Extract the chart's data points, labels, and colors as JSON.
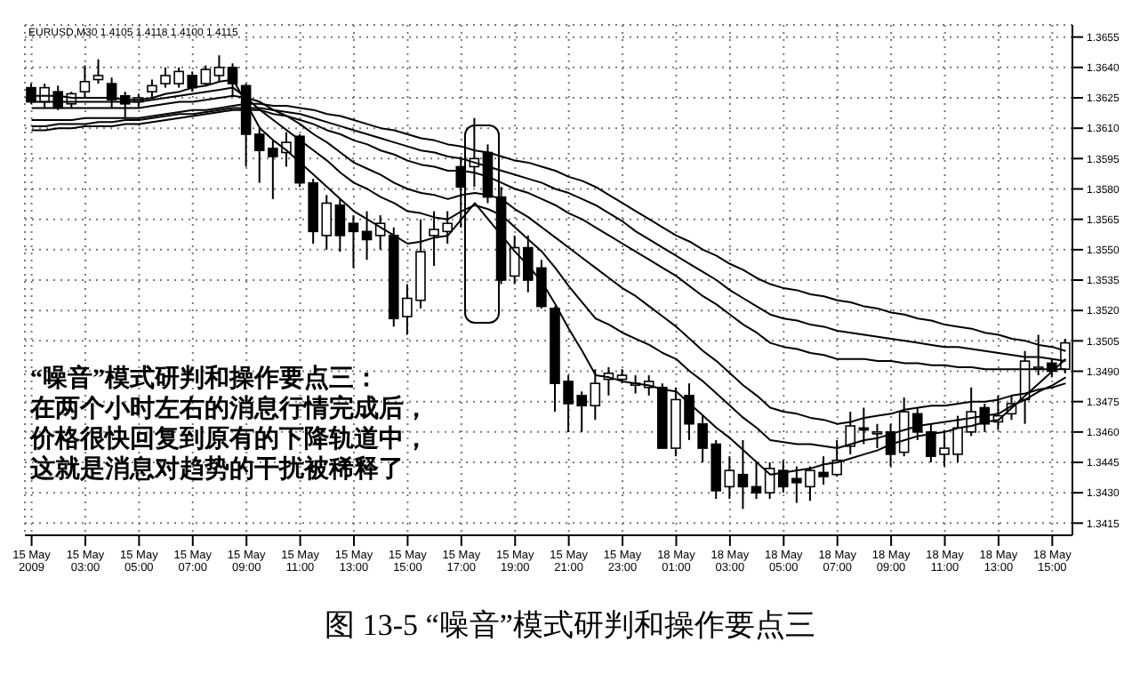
{
  "chart_data": {
    "type": "candlestick",
    "title": "图 13-5 “噪音”模式研判和操作要点三",
    "annotations": [
      "EURUSD,M30 1.4105 1.4118 1.4100 1.4115",
      "“噪音”模式研判和操作要点三：",
      "在两个小时左右的消息行情完成后，",
      "价格很快回复到原有的下降轨道中，",
      "这就是消息对趋势的干扰被稀释了"
    ],
    "color": "#000000",
    "grid": true,
    "categories": [
      "15 May 2009",
      null,
      null,
      null,
      "15 May 03:00",
      null,
      null,
      null,
      "15 May 05:00",
      null,
      null,
      null,
      "15 May 07:00",
      null,
      null,
      null,
      "15 May 09:00",
      null,
      null,
      null,
      "15 May 11:00",
      null,
      null,
      null,
      "15 May 13:00",
      null,
      null,
      null,
      "15 May 15:00",
      null,
      null,
      null,
      "15 May 17:00",
      null,
      null,
      null,
      "15 May 19:00",
      null,
      null,
      null,
      "15 May 21:00",
      null,
      null,
      null,
      "15 May 23:00",
      null,
      null,
      null,
      "18 May 01:00",
      null,
      null,
      null,
      "18 May 03:00",
      null,
      null,
      null,
      "18 May 05:00",
      null,
      null,
      null,
      "18 May 07:00",
      null,
      null,
      null,
      "18 May 09:00",
      null,
      null,
      null,
      "18 May 11:00",
      null,
      null,
      null,
      "18 May 13:00",
      null,
      null,
      null,
      "18 May 15:00",
      null
    ],
    "ylim": [
      1.3409,
      1.3661
    ],
    "yticks": [
      1.3415,
      {
        "value": 1.343,
        "label": "1.3430"
      },
      1.3445,
      {
        "value": 1.346,
        "label": "1.3460"
      },
      1.3475,
      {
        "value": 1.349,
        "label": "1.3490"
      },
      1.3505,
      {
        "value": 1.352,
        "label": "1.3520"
      },
      1.3535,
      {
        "value": 1.355,
        "label": "1.3550"
      },
      1.3565,
      {
        "value": 1.358,
        "label": "1.3580"
      },
      1.3595,
      {
        "value": 1.361,
        "label": "1.3610"
      },
      1.3625,
      {
        "value": 1.364,
        "label": "1.3640"
      },
      1.3655
    ],
    "ohlc": [
      [
        1.363,
        1.3632,
        1.3622,
        1.3623
      ],
      [
        1.3623,
        1.3632,
        1.362,
        1.363
      ],
      [
        1.3628,
        1.3631,
        1.3619,
        1.362
      ],
      [
        1.3622,
        1.3628,
        1.362,
        1.3627
      ],
      [
        1.3628,
        1.3641,
        1.3625,
        1.3633
      ],
      [
        1.3634,
        1.3644,
        1.3632,
        1.3636
      ],
      [
        1.3632,
        1.3635,
        1.362,
        1.3624
      ],
      [
        1.3626,
        1.3628,
        1.3615,
        1.3622
      ],
      [
        1.3623,
        1.3627,
        1.362,
        1.3625
      ],
      [
        1.3628,
        1.3634,
        1.3625,
        1.3631
      ],
      [
        1.3632,
        1.364,
        1.363,
        1.3636
      ],
      [
        1.3632,
        1.364,
        1.363,
        1.3638
      ],
      [
        1.3636,
        1.3638,
        1.3628,
        1.363
      ],
      [
        1.3632,
        1.3641,
        1.3631,
        1.3639
      ],
      [
        1.3636,
        1.3646,
        1.3633,
        1.364
      ],
      [
        1.364,
        1.3642,
        1.3626,
        1.3632
      ],
      [
        1.3631,
        1.3632,
        1.3591,
        1.3607
      ],
      [
        1.3607,
        1.361,
        1.3583,
        1.3599
      ],
      [
        1.36,
        1.3604,
        1.3575,
        1.3596
      ],
      [
        1.3598,
        1.3608,
        1.3591,
        1.3603
      ],
      [
        1.3606,
        1.3607,
        1.3581,
        1.3583
      ],
      [
        1.3583,
        1.3585,
        1.3553,
        1.3559
      ],
      [
        1.3557,
        1.3577,
        1.355,
        1.3573
      ],
      [
        1.3572,
        1.3575,
        1.3549,
        1.3557
      ],
      [
        1.3563,
        1.3567,
        1.3541,
        1.3559
      ],
      [
        1.3559,
        1.3569,
        1.3545,
        1.3555
      ],
      [
        1.3557,
        1.3567,
        1.355,
        1.3563
      ],
      [
        1.3557,
        1.3561,
        1.3512,
        1.3516
      ],
      [
        1.3517,
        1.3533,
        1.3508,
        1.3526
      ],
      [
        1.3525,
        1.3565,
        1.3521,
        1.3549
      ],
      [
        1.3557,
        1.3569,
        1.3542,
        1.356
      ],
      [
        1.3559,
        1.3569,
        1.3553,
        1.3563
      ],
      [
        1.3591,
        1.3596,
        1.3561,
        1.3581
      ],
      [
        1.3591,
        1.3615,
        1.3581,
        1.3595
      ],
      [
        1.3598,
        1.3602,
        1.3573,
        1.3576
      ],
      [
        1.3576,
        1.3581,
        1.3533,
        1.3535
      ],
      [
        1.3537,
        1.3557,
        1.3533,
        1.3551
      ],
      [
        1.3551,
        1.3557,
        1.3529,
        1.3535
      ],
      [
        1.3541,
        1.3545,
        1.3521,
        1.3522
      ],
      [
        1.3521,
        1.3522,
        1.347,
        1.3484
      ],
      [
        1.3485,
        1.3488,
        1.346,
        1.3474
      ],
      [
        1.3478,
        1.348,
        1.346,
        1.3473
      ],
      [
        1.3473,
        1.3491,
        1.3466,
        1.3484
      ],
      [
        1.3486,
        1.3492,
        1.3478,
        1.3489
      ],
      [
        1.3486,
        1.3491,
        1.3484,
        1.3488
      ],
      [
        1.3484,
        1.3488,
        1.3479,
        1.3484
      ],
      [
        1.3482,
        1.3488,
        1.3478,
        1.3485
      ],
      [
        1.3482,
        1.3484,
        1.3452,
        1.3452
      ],
      [
        1.3452,
        1.3482,
        1.3448,
        1.3476
      ],
      [
        1.3478,
        1.3484,
        1.3456,
        1.3464
      ],
      [
        1.3464,
        1.3468,
        1.3445,
        1.3452
      ],
      [
        1.3454,
        1.3456,
        1.3427,
        1.3431
      ],
      [
        1.3433,
        1.3448,
        1.3427,
        1.3441
      ],
      [
        1.3439,
        1.3456,
        1.3422,
        1.3433
      ],
      [
        1.3433,
        1.3445,
        1.3427,
        1.343
      ],
      [
        1.343,
        1.3445,
        1.3427,
        1.3442
      ],
      [
        1.3441,
        1.3446,
        1.343,
        1.3433
      ],
      [
        1.3437,
        1.3443,
        1.3425,
        1.3435
      ],
      [
        1.3433,
        1.3443,
        1.3426,
        1.3441
      ],
      [
        1.344,
        1.3448,
        1.3434,
        1.3438
      ],
      [
        1.3439,
        1.3456,
        1.3438,
        1.3446
      ],
      [
        1.3453,
        1.347,
        1.3449,
        1.3463
      ],
      [
        1.3462,
        1.3472,
        1.3454,
        1.3461
      ],
      [
        1.346,
        1.3464,
        1.3452,
        1.346
      ],
      [
        1.346,
        1.3464,
        1.3443,
        1.3449
      ],
      [
        1.345,
        1.3477,
        1.3448,
        1.347
      ],
      [
        1.3469,
        1.3472,
        1.3456,
        1.346
      ],
      [
        1.346,
        1.3464,
        1.3445,
        1.3448
      ],
      [
        1.3449,
        1.3461,
        1.3443,
        1.3452
      ],
      [
        1.3449,
        1.3468,
        1.3445,
        1.3462
      ],
      [
        1.346,
        1.3482,
        1.3458,
        1.347
      ],
      [
        1.3472,
        1.3474,
        1.346,
        1.3464
      ],
      [
        1.3465,
        1.3478,
        1.3461,
        1.3468
      ],
      [
        1.3469,
        1.3478,
        1.3466,
        1.3474
      ],
      [
        1.3476,
        1.35,
        1.3464,
        1.3495
      ],
      [
        1.3492,
        1.3508,
        1.3488,
        1.3492
      ],
      [
        1.3494,
        1.3496,
        1.3487,
        1.349
      ],
      [
        1.3491,
        1.3506,
        1.3489,
        1.3504
      ]
    ],
    "series": [
      {
        "type": "line",
        "color": "#000000",
        "values": [
          1.3614,
          1.3614,
          1.3614,
          1.3614,
          1.3615,
          1.3615,
          1.3615,
          1.3615,
          1.3615,
          1.3616,
          1.3617,
          1.3618,
          1.3619,
          1.3619,
          1.362,
          1.3621,
          1.3622,
          1.3622,
          1.3621,
          1.3621,
          1.362,
          1.3619,
          1.3617,
          1.3616,
          1.3614,
          1.3612,
          1.361,
          1.3609,
          1.3607,
          1.3605,
          1.3604,
          1.3602,
          1.3601,
          1.3599,
          1.3598,
          1.3596,
          1.3594,
          1.3593,
          1.3591,
          1.3589,
          1.3586,
          1.3584,
          1.3581,
          1.3577,
          1.3573,
          1.3569,
          1.3565,
          1.3561,
          1.3557,
          1.3554,
          1.355,
          1.3547,
          1.3543,
          1.354,
          1.3536,
          1.3533,
          1.3531,
          1.353,
          1.3528,
          1.3527,
          1.3525,
          1.3524,
          1.3522,
          1.3521,
          1.3519,
          1.3518,
          1.3516,
          1.3515,
          1.3513,
          1.3512,
          1.3511,
          1.3509,
          1.3508,
          1.3506,
          1.3505,
          1.3503,
          1.3502,
          1.35
        ]
      },
      {
        "type": "line",
        "color": "#000000",
        "values": [
          1.3611,
          1.3611,
          1.3612,
          1.3612,
          1.3612,
          1.3613,
          1.3613,
          1.3614,
          1.3614,
          1.3615,
          1.3616,
          1.3617,
          1.3617,
          1.3618,
          1.3619,
          1.362,
          1.362,
          1.362,
          1.3619,
          1.3618,
          1.3617,
          1.3615,
          1.3613,
          1.3611,
          1.3609,
          1.3607,
          1.3605,
          1.3603,
          1.3601,
          1.3599,
          1.3598,
          1.3596,
          1.3595,
          1.3593,
          1.3591,
          1.3589,
          1.3587,
          1.3585,
          1.3583,
          1.358,
          1.3578,
          1.3575,
          1.3572,
          1.3568,
          1.3564,
          1.3559,
          1.3555,
          1.3551,
          1.3547,
          1.3543,
          1.3539,
          1.3535,
          1.353,
          1.3526,
          1.3522,
          1.3518,
          1.3516,
          1.3515,
          1.3513,
          1.3512,
          1.351,
          1.3509,
          1.3508,
          1.3507,
          1.3506,
          1.3505,
          1.3504,
          1.3503,
          1.3502,
          1.3502,
          1.3501,
          1.35,
          1.3499,
          1.3498,
          1.3497,
          1.3497,
          1.3496,
          1.3495
        ]
      },
      {
        "type": "line",
        "color": "#000000",
        "values": [
          1.3609,
          1.3609,
          1.361,
          1.361,
          1.3611,
          1.3611,
          1.3611,
          1.3612,
          1.3612,
          1.3613,
          1.3614,
          1.3615,
          1.3616,
          1.3617,
          1.3618,
          1.3619,
          1.3619,
          1.3619,
          1.3617,
          1.3616,
          1.3614,
          1.3612,
          1.3609,
          1.3607,
          1.3604,
          1.3602,
          1.3599,
          1.3597,
          1.3594,
          1.3592,
          1.3591,
          1.3589,
          1.3589,
          1.3588,
          1.3586,
          1.3583,
          1.358,
          1.3578,
          1.3575,
          1.3572,
          1.3568,
          1.3565,
          1.3561,
          1.3557,
          1.3553,
          1.3549,
          1.3545,
          1.3541,
          1.3537,
          1.3532,
          1.3527,
          1.3523,
          1.3518,
          1.3513,
          1.3509,
          1.3504,
          1.3502,
          1.3501,
          1.3499,
          1.3498,
          1.3496,
          1.3496,
          1.3496,
          1.3495,
          1.3495,
          1.3494,
          1.3494,
          1.3493,
          1.3493,
          1.3492,
          1.3492,
          1.3491,
          1.3491,
          1.3491,
          1.3491,
          1.3491,
          1.3491,
          1.3491
        ]
      },
      {
        "type": "line",
        "color": "#000000",
        "values": [
          1.362,
          1.362,
          1.362,
          1.362,
          1.362,
          1.362,
          1.362,
          1.362,
          1.362,
          1.3621,
          1.3622,
          1.3623,
          1.3623,
          1.3624,
          1.3625,
          1.3626,
          1.3625,
          1.3623,
          1.3619,
          1.3616,
          1.3612,
          1.3607,
          1.3603,
          1.3598,
          1.3593,
          1.359,
          1.3587,
          1.3583,
          1.358,
          1.3578,
          1.3577,
          1.3575,
          1.3577,
          1.3578,
          1.3577,
          1.3575,
          1.357,
          1.3566,
          1.3561,
          1.3556,
          1.3551,
          1.3546,
          1.3541,
          1.3536,
          1.3531,
          1.3527,
          1.3522,
          1.3517,
          1.3512,
          1.3506,
          1.35,
          1.3495,
          1.3489,
          1.3483,
          1.3478,
          1.3472,
          1.347,
          1.3469,
          1.3467,
          1.3466,
          1.3464,
          1.3465,
          1.3467,
          1.3468,
          1.3469,
          1.3471,
          1.3472,
          1.3473,
          1.3473,
          1.3474,
          1.3475,
          1.3475,
          1.3476,
          1.3478,
          1.3479,
          1.3481,
          1.3482,
          1.3484
        ]
      },
      {
        "type": "line",
        "color": "#000000",
        "values": [
          1.3623,
          1.3623,
          1.3623,
          1.3623,
          1.3623,
          1.3623,
          1.3623,
          1.3623,
          1.3623,
          1.3624,
          1.3625,
          1.3626,
          1.3627,
          1.3628,
          1.3629,
          1.363,
          1.3625,
          1.3619,
          1.3614,
          1.3609,
          1.3604,
          1.3599,
          1.3594,
          1.3588,
          1.3583,
          1.358,
          1.3576,
          1.3573,
          1.3569,
          1.3568,
          1.3566,
          1.3565,
          1.3569,
          1.3572,
          1.357,
          1.3567,
          1.3561,
          1.3555,
          1.3549,
          1.3541,
          1.3532,
          1.3524,
          1.3516,
          1.3513,
          1.3509,
          1.3506,
          1.3503,
          1.3499,
          1.3496,
          1.349,
          1.3485,
          1.3479,
          1.3473,
          1.3467,
          1.3462,
          1.3456,
          1.3455,
          1.3454,
          1.3454,
          1.3453,
          1.3452,
          1.3454,
          1.3456,
          1.3457,
          1.3459,
          1.3461,
          1.3463,
          1.3464,
          1.3465,
          1.3466,
          1.3467,
          1.3468,
          1.3469,
          1.3473,
          1.3476,
          1.348,
          1.3483,
          1.3487
        ]
      },
      {
        "type": "line",
        "color": "#000000",
        "values": [
          1.3626,
          1.3626,
          1.3626,
          1.3625,
          1.3625,
          1.3625,
          1.3625,
          1.3624,
          1.3624,
          1.3625,
          1.3627,
          1.3628,
          1.363,
          1.3631,
          1.3633,
          1.3634,
          1.3622,
          1.361,
          1.3604,
          1.3599,
          1.3593,
          1.3587,
          1.3581,
          1.3575,
          1.3569,
          1.3565,
          1.3561,
          1.3557,
          1.3553,
          1.3554,
          1.3556,
          1.3557,
          1.3565,
          1.3573,
          1.3565,
          1.3557,
          1.3549,
          1.3542,
          1.3534,
          1.3523,
          1.3511,
          1.35,
          1.3488,
          1.3487,
          1.3485,
          1.3484,
          1.3483,
          1.3481,
          1.348,
          1.3474,
          1.3468,
          1.3462,
          1.3457,
          1.3451,
          1.3445,
          1.3439,
          1.344,
          1.3441,
          1.3442,
          1.3444,
          1.3445,
          1.3447,
          1.3449,
          1.3451,
          1.3454,
          1.3456,
          1.3458,
          1.3459,
          1.346,
          1.3462,
          1.3463,
          1.3465,
          1.3466,
          1.3472,
          1.3478,
          1.3484,
          1.349,
          1.3496
        ]
      }
    ]
  }
}
